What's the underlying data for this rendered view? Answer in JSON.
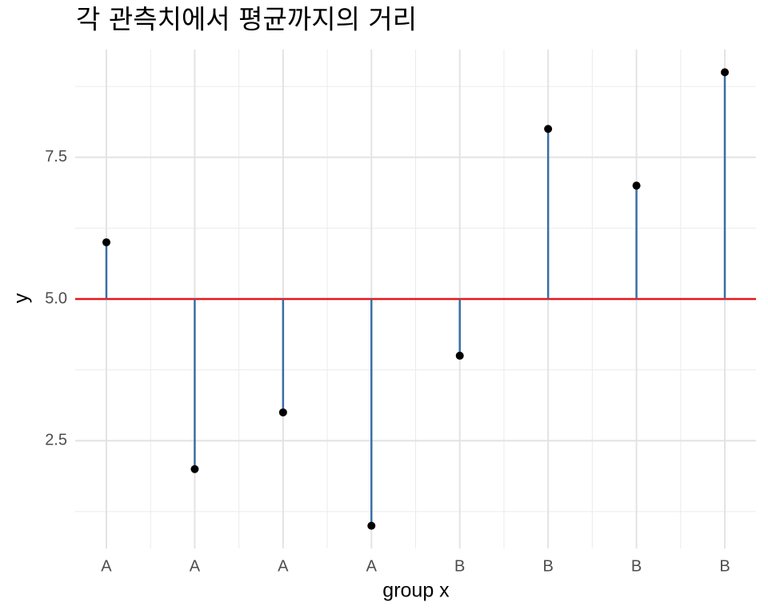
{
  "chart_data": {
    "type": "lollipop",
    "title": "각 관측치에서 평균까지의 거리",
    "x_label": "group x",
    "y_label": "y",
    "categories": [
      "A",
      "A",
      "A",
      "A",
      "B",
      "B",
      "B",
      "B"
    ],
    "values": [
      6,
      2,
      3,
      1,
      4,
      8,
      7,
      9
    ],
    "mean": 5,
    "mean_color": "#e8141c",
    "segment_color": "#3a6ea5",
    "point_color": "#000000",
    "ylim": [
      0.6,
      9.4
    ],
    "yticks": [
      2.5,
      {
        "value": 5,
        "label": "5.0"
      },
      7.5
    ],
    "grid": true
  }
}
